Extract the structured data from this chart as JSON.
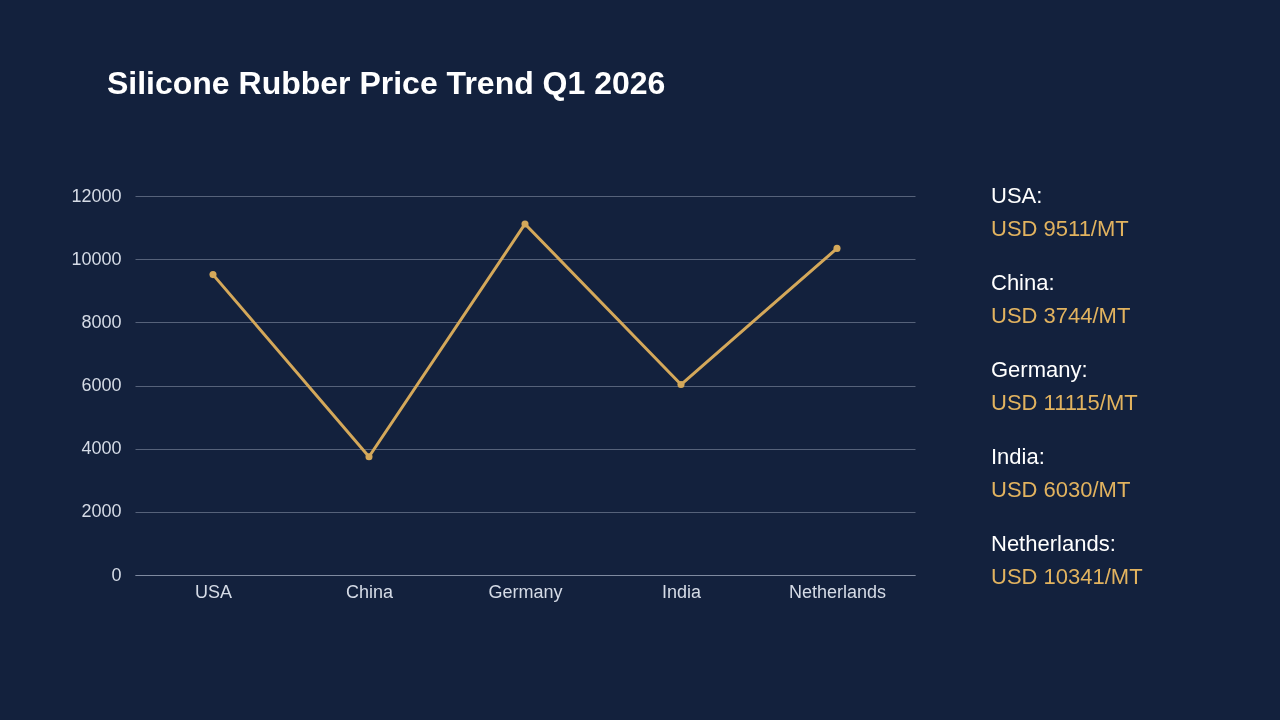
{
  "chart_data": [
    {
      "type": "line",
      "title": "Silicone Rubber Price Trend Q1 2026",
      "categories": [
        "USA",
        "China",
        "Germany",
        "India",
        "Netherlands"
      ],
      "series": [
        {
          "color": "#d4a85a",
          "values": [
            9511,
            3744,
            11115,
            6030,
            10341
          ]
        }
      ],
      "ylim": [
        0,
        12000
      ],
      "yticks": [
        0,
        2000,
        4000,
        6000,
        8000,
        10000,
        12000
      ],
      "grid": "y",
      "marker": "circle",
      "line_style": "solid",
      "legend": false
    },
    {
      "type": "other",
      "annotations": [
        "USA:",
        "USD 9511/MT",
        "China:",
        "USD 3744/MT",
        "Germany:",
        "USD 11115/MT",
        "India:",
        "USD 6030/MT",
        "Netherlands:",
        "USD 10341/MT"
      ]
    }
  ]
}
